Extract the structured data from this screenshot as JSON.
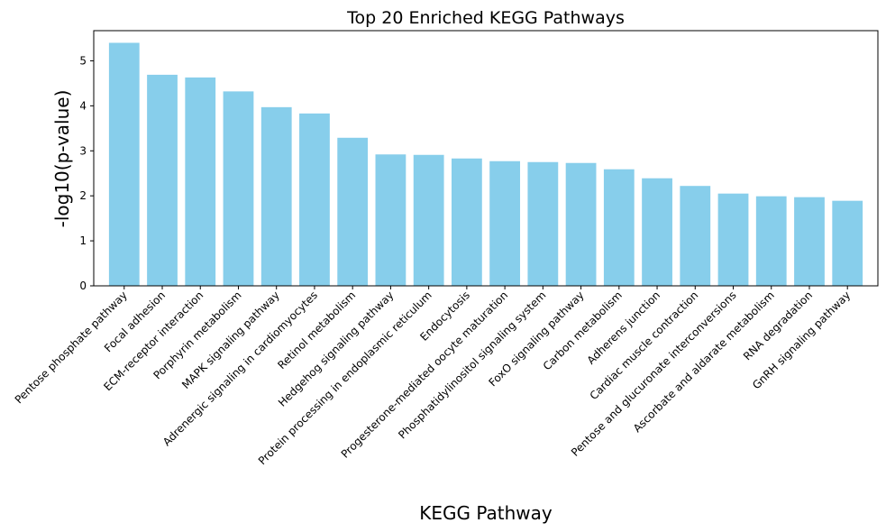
{
  "chart_data": {
    "type": "bar",
    "title": "Top 20 Enriched KEGG Pathways",
    "xlabel": "KEGG Pathway",
    "ylabel": "-log10(p-value)",
    "categories": [
      "Pentose phosphate pathway",
      "Focal adhesion",
      "ECM-receptor interaction",
      "Porphyrin metabolism",
      "MAPK signaling pathway",
      "Adrenergic signaling in cardiomyocytes",
      "Retinol metabolism",
      "Hedgehog signaling pathway",
      "Protein processing in endoplasmic reticulum",
      "Endocytosis",
      "Progesterone-mediated oocyte maturation",
      "Phosphatidylinositol signaling system",
      "FoxO signaling pathway",
      "Carbon metabolism",
      "Adherens junction",
      "Cardiac muscle contraction",
      "Pentose and glucuronate interconversions",
      "Ascorbate and aldarate metabolism",
      "RNA degradation",
      "GnRH signaling pathway"
    ],
    "values": [
      5.4,
      4.69,
      4.63,
      4.32,
      3.97,
      3.83,
      3.29,
      2.92,
      2.91,
      2.83,
      2.77,
      2.75,
      2.73,
      2.59,
      2.39,
      2.22,
      2.05,
      1.99,
      1.97,
      1.89
    ],
    "ylim": [
      0,
      5.67
    ],
    "yticks": [
      "0",
      "1",
      "2",
      "3",
      "4",
      "5"
    ],
    "bar_color": "#87ceeb",
    "grid": false
  }
}
